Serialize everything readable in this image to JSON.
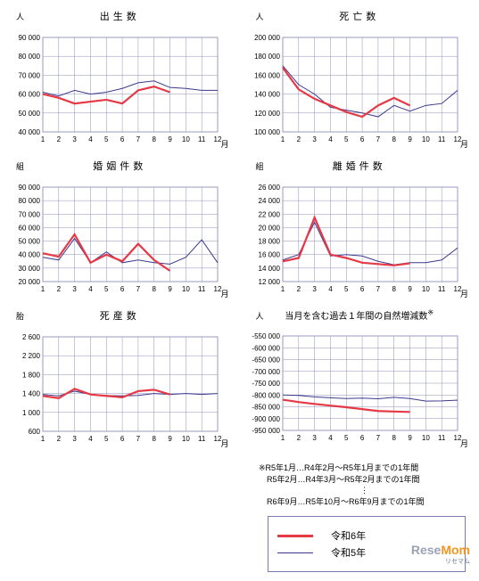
{
  "style": {
    "red": "#e63946",
    "blue": "#3a3a8c",
    "grid": "#9090bb",
    "axis": "#000000",
    "red_w": 2.2,
    "blue_w": 1,
    "font_axis": 8
  },
  "x": {
    "vals": [
      1,
      2,
      3,
      4,
      5,
      6,
      7,
      8,
      9,
      10,
      11,
      12
    ],
    "label": "月"
  },
  "charts": [
    {
      "title": "出生数",
      "unit": "人",
      "ymin": 40000,
      "ymax": 90000,
      "ystep": 10000,
      "r6": [
        60000,
        58000,
        55000,
        56000,
        57000,
        55000,
        62000,
        64000,
        61000
      ],
      "r5": [
        61000,
        59000,
        62000,
        60000,
        61000,
        63000,
        66000,
        67000,
        63500,
        63000,
        62000,
        62000
      ]
    },
    {
      "title": "死亡数",
      "unit": "人",
      "ymin": 100000,
      "ymax": 200000,
      "ystep": 20000,
      "r6": [
        168000,
        145000,
        135000,
        128000,
        121000,
        116000,
        128000,
        136000,
        128000
      ],
      "r5": [
        170000,
        150000,
        140000,
        126000,
        123000,
        120000,
        116000,
        128000,
        122000,
        128000,
        130000,
        144000
      ]
    },
    {
      "title": "婚姻件数",
      "unit": "組",
      "ymin": 20000,
      "ymax": 90000,
      "ystep": 10000,
      "r6": [
        41000,
        38500,
        55000,
        34000,
        40000,
        35000,
        48000,
        36000,
        28000
      ],
      "r5": [
        38000,
        36000,
        52000,
        34000,
        42000,
        34000,
        36000,
        34000,
        33000,
        38000,
        51000,
        34000
      ]
    },
    {
      "title": "離婚件数",
      "unit": "組",
      "ymin": 12000,
      "ymax": 26000,
      "ystep": 2000,
      "r6": [
        15000,
        15500,
        21500,
        16000,
        15500,
        14800,
        14600,
        14400,
        14700
      ],
      "r5": [
        15200,
        16000,
        20800,
        15800,
        16000,
        15800,
        15000,
        14500,
        14800,
        14800,
        15200,
        17000
      ]
    },
    {
      "title": "死産数",
      "unit": "胎",
      "ymin": 600,
      "ymax": 2600,
      "ystep": 400,
      "r6": [
        1350,
        1300,
        1500,
        1380,
        1350,
        1320,
        1450,
        1480,
        1380
      ],
      "r5": [
        1380,
        1350,
        1450,
        1380,
        1360,
        1350,
        1360,
        1400,
        1380,
        1400,
        1380,
        1400
      ]
    },
    {
      "title": "当月を含む過去１年間の自然増減数",
      "unit": "人",
      "sup": "※",
      "tight": true,
      "ymin": -950000,
      "ymax": -550000,
      "ystep": 50000,
      "r6": [
        -820000,
        -830000,
        -838000,
        -845000,
        -852000,
        -860000,
        -868000,
        -870000,
        -872000
      ],
      "r5": [
        -800000,
        -802000,
        -808000,
        -812000,
        -815000,
        -813000,
        -816000,
        -810000,
        -815000,
        -826000,
        -825000,
        -822000
      ]
    }
  ],
  "footnote": {
    "l1": "※R5年1月…R4年2月～R5年1月までの1年間",
    "l2": "R5年2月…R4年3月～R5年2月までの1年間",
    "dots": "⋮",
    "l3": "R6年9月…R5年10月～R6年9月までの1年間"
  },
  "legend": {
    "r6": "令和6年",
    "r5": "令和5年"
  },
  "watermark": {
    "a": "Rese",
    "b": "Mom",
    "sub": "リセマム"
  }
}
